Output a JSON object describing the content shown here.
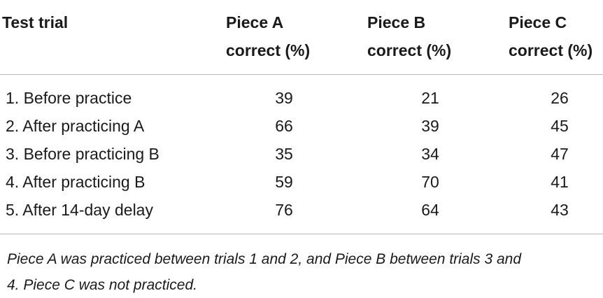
{
  "table": {
    "headers": {
      "col0": [
        "Test trial"
      ],
      "col1": [
        "Piece A",
        "correct (%)"
      ],
      "col2": [
        "Piece B",
        "correct (%)"
      ],
      "col3": [
        "Piece C",
        "correct (%)"
      ]
    },
    "rows": [
      {
        "trial": "1. Before practice",
        "a": "39",
        "b": "21",
        "c": "26"
      },
      {
        "trial": "2. After practicing A",
        "a": "66",
        "b": "39",
        "c": "45"
      },
      {
        "trial": "3. Before practicing B",
        "a": "35",
        "b": "34",
        "c": "47"
      },
      {
        "trial": "4. After practicing B",
        "a": "59",
        "b": "70",
        "c": "41"
      },
      {
        "trial": "5. After 14-day delay",
        "a": "76",
        "b": "64",
        "c": "43"
      }
    ]
  },
  "footnote": {
    "line1": "Piece A was practiced between trials 1 and 2, and Piece B between trials 3 and",
    "line2": "4. Piece C was not practiced."
  }
}
